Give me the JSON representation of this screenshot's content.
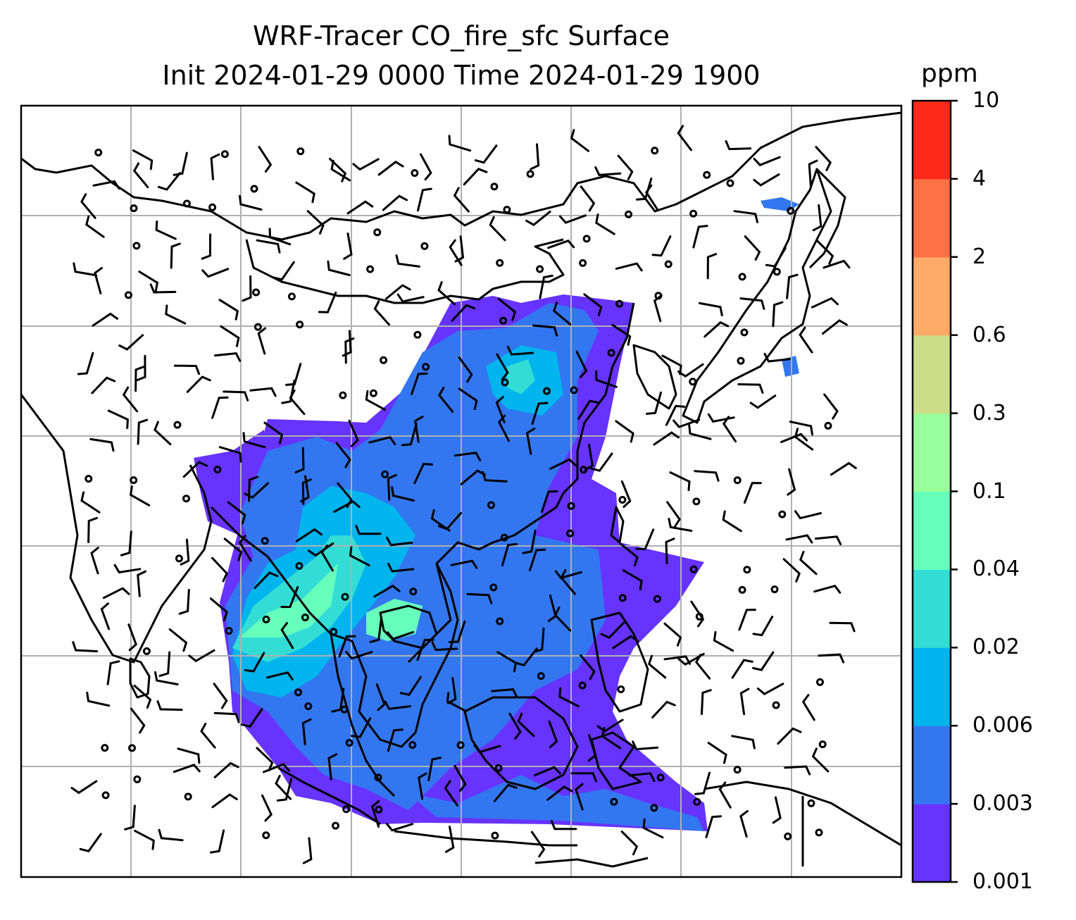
{
  "title": {
    "line1": "WRF-Tracer CO_fire_sfc Surface",
    "line2": "Init 2024-01-29 0000 Time 2024-01-29 1900"
  },
  "colorbar": {
    "unit": "ppm",
    "levels": [
      "0.001",
      "0.003",
      "0.006",
      "0.02",
      "0.04",
      "0.1",
      "0.3",
      "0.6",
      "2",
      "4",
      "10"
    ],
    "colors": [
      "#6633ff",
      "#3377f0",
      "#00b4ee",
      "#33ddd5",
      "#66ffbb",
      "#99ff99",
      "#ccdd88",
      "#ffaa66",
      "#ff7044",
      "#ff2a1a"
    ]
  },
  "map": {
    "land_outline_color": "#000000",
    "grid_color": "#b0b0b0",
    "tracer_field_colors": {
      "low": "#6633ff",
      "mid": "#3377f0",
      "cyan": "#00b4ee",
      "teal": "#33ddd5",
      "green": "#66ffbb"
    }
  }
}
